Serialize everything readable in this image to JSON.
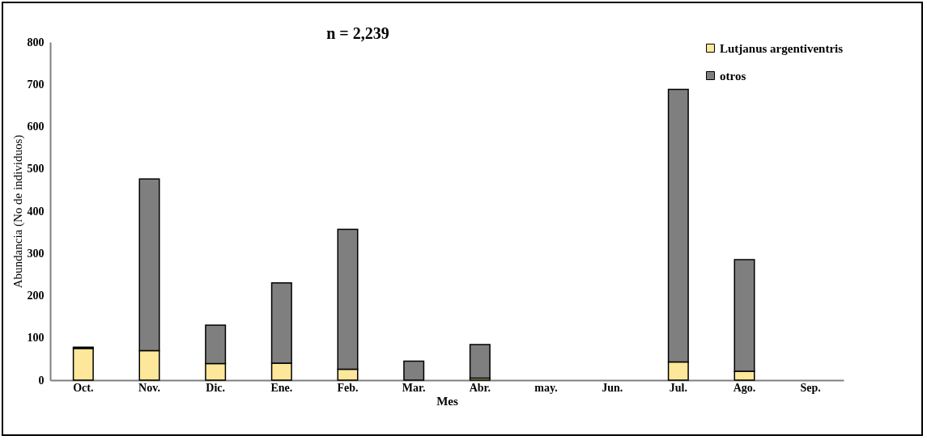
{
  "chart_data": {
    "type": "bar",
    "stacked": true,
    "xlabel": "Mes",
    "ylabel": "Abundancia (No de individuos)",
    "categories": [
      "Oct.",
      "Nov.",
      "Dic.",
      "Ene.",
      "Feb.",
      "Mar.",
      "Abr.",
      "may.",
      "Jun.",
      "Jul.",
      "Ago.",
      "Sep."
    ],
    "series": [
      {
        "name": "Lutjanus argentiventris",
        "color": "#fde79a",
        "values": [
          75,
          70,
          39,
          40,
          26,
          null,
          5,
          0,
          0,
          43,
          21,
          0
        ]
      },
      {
        "name": "otros",
        "color": "#7f7f7f",
        "values": [
          3,
          406,
          91,
          190,
          331,
          45,
          79,
          0,
          0,
          645,
          264,
          0
        ]
      }
    ],
    "ylim": [
      0,
      800
    ],
    "yticks": [
      0,
      100,
      200,
      300,
      400,
      500,
      600,
      700,
      800
    ],
    "grid": false,
    "legend": "top right",
    "annotations": [
      "n = 2,239"
    ]
  }
}
